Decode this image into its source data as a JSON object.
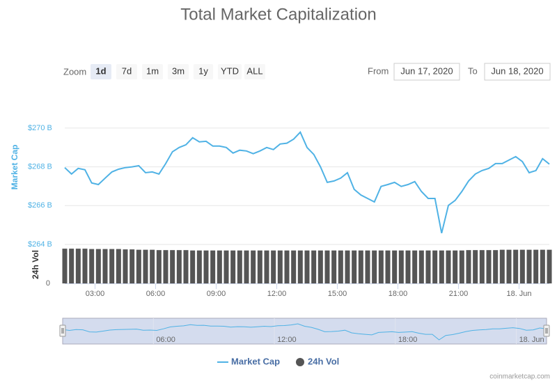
{
  "chart_data": {
    "type": "line",
    "title": "Total Market Capitalization",
    "range_selector": {
      "label": "Zoom",
      "buttons": [
        "1d",
        "7d",
        "1m",
        "3m",
        "1y",
        "YTD",
        "ALL"
      ],
      "selected": 0,
      "from_label": "From",
      "from": "Jun 17, 2020",
      "to_label": "To",
      "to": "Jun 18, 2020"
    },
    "y_axis_label": "Market Cap",
    "y2_axis_label": "24h Vol",
    "x": [
      "2020-06-17T01:30",
      "2020-06-17T01:50",
      "2020-06-17T02:10",
      "2020-06-17T02:30",
      "2020-06-17T02:50",
      "2020-06-17T03:10",
      "2020-06-17T03:30",
      "2020-06-17T03:50",
      "2020-06-17T04:10",
      "2020-06-17T04:30",
      "2020-06-17T04:50",
      "2020-06-17T05:10",
      "2020-06-17T05:30",
      "2020-06-17T05:50",
      "2020-06-17T06:10",
      "2020-06-17T06:30",
      "2020-06-17T06:50",
      "2020-06-17T07:10",
      "2020-06-17T07:30",
      "2020-06-17T07:50",
      "2020-06-17T08:10",
      "2020-06-17T08:30",
      "2020-06-17T08:50",
      "2020-06-17T09:10",
      "2020-06-17T09:30",
      "2020-06-17T09:50",
      "2020-06-17T10:10",
      "2020-06-17T10:30",
      "2020-06-17T10:50",
      "2020-06-17T11:10",
      "2020-06-17T11:30",
      "2020-06-17T11:50",
      "2020-06-17T12:10",
      "2020-06-17T12:30",
      "2020-06-17T12:50",
      "2020-06-17T13:10",
      "2020-06-17T13:30",
      "2020-06-17T13:50",
      "2020-06-17T14:10",
      "2020-06-17T14:30",
      "2020-06-17T14:50",
      "2020-06-17T15:10",
      "2020-06-17T15:30",
      "2020-06-17T15:50",
      "2020-06-17T16:10",
      "2020-06-17T16:30",
      "2020-06-17T16:50",
      "2020-06-17T17:10",
      "2020-06-17T17:30",
      "2020-06-17T17:50",
      "2020-06-17T18:10",
      "2020-06-17T18:30",
      "2020-06-17T18:50",
      "2020-06-17T19:10",
      "2020-06-17T19:30",
      "2020-06-17T19:50",
      "2020-06-17T20:10",
      "2020-06-17T20:30",
      "2020-06-17T20:50",
      "2020-06-17T21:10",
      "2020-06-17T21:30",
      "2020-06-17T21:50",
      "2020-06-17T22:10",
      "2020-06-17T22:30",
      "2020-06-17T22:50",
      "2020-06-17T23:10",
      "2020-06-17T23:30",
      "2020-06-17T23:50",
      "2020-06-18T00:10",
      "2020-06-18T00:30",
      "2020-06-18T00:50",
      "2020-06-18T01:10",
      "2020-06-18T01:30"
    ],
    "series": [
      {
        "name": "Market Cap",
        "color": "#4fb2e5",
        "values": [
          267.96,
          267.63,
          267.92,
          267.85,
          267.17,
          267.09,
          267.42,
          267.74,
          267.88,
          267.96,
          268.0,
          268.06,
          267.7,
          267.74,
          267.63,
          268.17,
          268.78,
          269.0,
          269.14,
          269.5,
          269.29,
          269.32,
          269.07,
          269.07,
          269.0,
          268.71,
          268.86,
          268.82,
          268.68,
          268.82,
          269.0,
          268.89,
          269.18,
          269.22,
          269.43,
          269.79,
          269.0,
          268.64,
          268.0,
          267.2,
          267.27,
          267.42,
          267.7,
          266.84,
          266.55,
          266.37,
          266.19,
          266.99,
          267.09,
          267.2,
          266.99,
          267.09,
          267.24,
          266.73,
          266.37,
          266.37,
          264.58,
          266.01,
          266.27,
          266.73,
          267.27,
          267.63,
          267.81,
          267.92,
          268.17,
          268.17,
          268.35,
          268.53,
          268.27,
          267.7,
          267.81,
          268.42,
          268.14
        ]
      },
      {
        "name": "24h Vol",
        "color": "#555555",
        "axis": "y2",
        "values": [
          96,
          96,
          96,
          96,
          95,
          95,
          95,
          95,
          95,
          94,
          94,
          93,
          93,
          93,
          92,
          92,
          92,
          92,
          92,
          91,
          91,
          91,
          91,
          91,
          91,
          91,
          91,
          91,
          91,
          91,
          91,
          91,
          91,
          91,
          91,
          91,
          91,
          91,
          91,
          91,
          91,
          91,
          91,
          91,
          91,
          91,
          91,
          91,
          91,
          91,
          91,
          91,
          91,
          91,
          91,
          91,
          91,
          91,
          91,
          91,
          92,
          92,
          92,
          92,
          92,
          93,
          93,
          93,
          93,
          93,
          93,
          93,
          93
        ]
      }
    ],
    "xlim": [
      "2020-06-17T01:30",
      "2020-06-18T01:30"
    ],
    "xticks": [
      {
        "value": "2020-06-17T03:00",
        "label": "03:00"
      },
      {
        "value": "2020-06-17T06:00",
        "label": "06:00"
      },
      {
        "value": "2020-06-17T09:00",
        "label": "09:00"
      },
      {
        "value": "2020-06-17T12:00",
        "label": "12:00"
      },
      {
        "value": "2020-06-17T15:00",
        "label": "15:00"
      },
      {
        "value": "2020-06-17T18:00",
        "label": "18:00"
      },
      {
        "value": "2020-06-17T21:00",
        "label": "21:00"
      },
      {
        "value": "2020-06-18T00:00",
        "label": "18. Jun"
      }
    ],
    "navigator_xticks": [
      {
        "value": "2020-06-17T06:00",
        "label": "06:00"
      },
      {
        "value": "2020-06-17T12:00",
        "label": "12:00"
      },
      {
        "value": "2020-06-17T18:00",
        "label": "18:00"
      },
      {
        "value": "2020-06-18T00:00",
        "label": "18. Jun"
      }
    ],
    "ylim": [
      264,
      270.5
    ],
    "yticks": [
      {
        "value": 264,
        "label": "$264 B"
      },
      {
        "value": 266,
        "label": "$266 B"
      },
      {
        "value": 268,
        "label": "$268 B"
      },
      {
        "value": 270,
        "label": "$270 B"
      }
    ],
    "y2lim": [
      0,
      100
    ],
    "y2ticks": [
      0
    ],
    "grid": true,
    "legend": "bottom",
    "credits": "coinmarketcap.com"
  }
}
